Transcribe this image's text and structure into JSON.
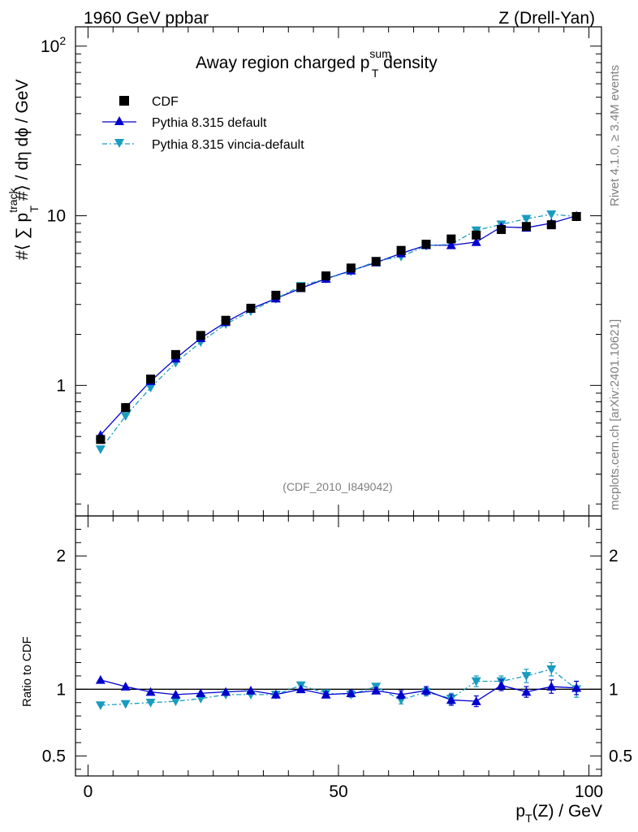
{
  "header": {
    "left": "1960 GeV ppbar",
    "right": "Z (Drell-Yan)"
  },
  "title": {
    "prefix": "Away region charged p",
    "sup": "sum",
    "sub": "T",
    "suffix": " density"
  },
  "ylabel": {
    "a": "#⟨ ∑ p",
    "sup": "track",
    "sub": "T",
    "b": " #⟩ / dη dϕ / GeV"
  },
  "xlabel": {
    "a": "p",
    "sub": "T",
    "b": "(Z) / GeV"
  },
  "ratio_label": "Ratio to CDF",
  "side_right_top": "Rivet 4.1.0, ≥ 3.4M events",
  "side_right_bottom": "mcplots.cern.ch [arXiv:2401.10621]",
  "analysis_id": "(CDF_2010_I849042)",
  "colors": {
    "data": "#000000",
    "pythia": "#0000cc",
    "vincia": "#1a9cc0"
  },
  "chart_data": {
    "type": "line",
    "xlim": [
      -2.5,
      102.5
    ],
    "ylim": [
      0.17,
      130
    ],
    "yscale": "log",
    "ratio_ylim": [
      0.35,
      2.3
    ],
    "x_ticks": [
      0,
      50,
      100
    ],
    "x_tick_labels": [
      "0",
      "50",
      "100"
    ],
    "y_tick_labels": [
      {
        "value": 1,
        "label": "1"
      },
      {
        "value": 10,
        "label": "10"
      },
      {
        "value": 100,
        "label": "10",
        "sup": "2"
      }
    ],
    "ratio_tick_labels": [
      {
        "value": 0.5,
        "label": "0.5"
      },
      {
        "value": 1,
        "label": "1"
      },
      {
        "value": 2,
        "label": "2"
      }
    ],
    "x": [
      2.5,
      7.5,
      12.5,
      17.5,
      22.5,
      27.5,
      32.5,
      37.5,
      42.5,
      47.5,
      52.5,
      57.5,
      62.5,
      67.5,
      72.5,
      77.5,
      82.5,
      87.5,
      92.5,
      97.5
    ],
    "series": [
      {
        "name": "CDF",
        "values": [
          0.48,
          0.74,
          1.09,
          1.52,
          1.97,
          2.42,
          2.85,
          3.4,
          3.78,
          4.42,
          4.92,
          5.38,
          6.25,
          6.8,
          7.3,
          7.7,
          8.3,
          8.65,
          8.85,
          9.9
        ]
      },
      {
        "name": "Pythia 8.315 default",
        "values": [
          0.51,
          0.74,
          1.06,
          1.44,
          1.9,
          2.36,
          2.83,
          3.25,
          3.74,
          4.25,
          4.75,
          5.3,
          6.0,
          6.7,
          6.7,
          7.0,
          8.6,
          8.5,
          9.05,
          10.0
        ],
        "ratio": [
          1.07,
          1.02,
          0.98,
          0.96,
          0.97,
          0.98,
          0.99,
          0.96,
          1.0,
          0.96,
          0.97,
          0.99,
          0.96,
          0.99,
          0.92,
          0.91,
          1.03,
          0.98,
          1.02,
          1.01
        ],
        "ratio_err": [
          0.01,
          0.01,
          0.01,
          0.01,
          0.01,
          0.01,
          0.01,
          0.01,
          0.01,
          0.02,
          0.02,
          0.02,
          0.03,
          0.03,
          0.04,
          0.04,
          0.04,
          0.04,
          0.05,
          0.05
        ]
      },
      {
        "name": "Pythia 8.315 vincia-default",
        "values": [
          0.42,
          0.66,
          0.97,
          1.36,
          1.8,
          2.3,
          2.74,
          3.24,
          3.86,
          4.25,
          4.7,
          5.4,
          5.75,
          6.65,
          6.8,
          8.2,
          8.9,
          9.6,
          10.2,
          9.9
        ],
        "ratio": [
          0.88,
          0.89,
          0.9,
          0.91,
          0.93,
          0.96,
          0.96,
          0.96,
          1.03,
          0.97,
          0.96,
          1.02,
          0.92,
          0.98,
          0.93,
          1.06,
          1.06,
          1.1,
          1.15,
          1.0
        ],
        "ratio_err": [
          0.01,
          0.01,
          0.01,
          0.01,
          0.01,
          0.01,
          0.01,
          0.01,
          0.02,
          0.02,
          0.02,
          0.02,
          0.03,
          0.03,
          0.04,
          0.04,
          0.04,
          0.05,
          0.05,
          0.06
        ]
      }
    ]
  }
}
